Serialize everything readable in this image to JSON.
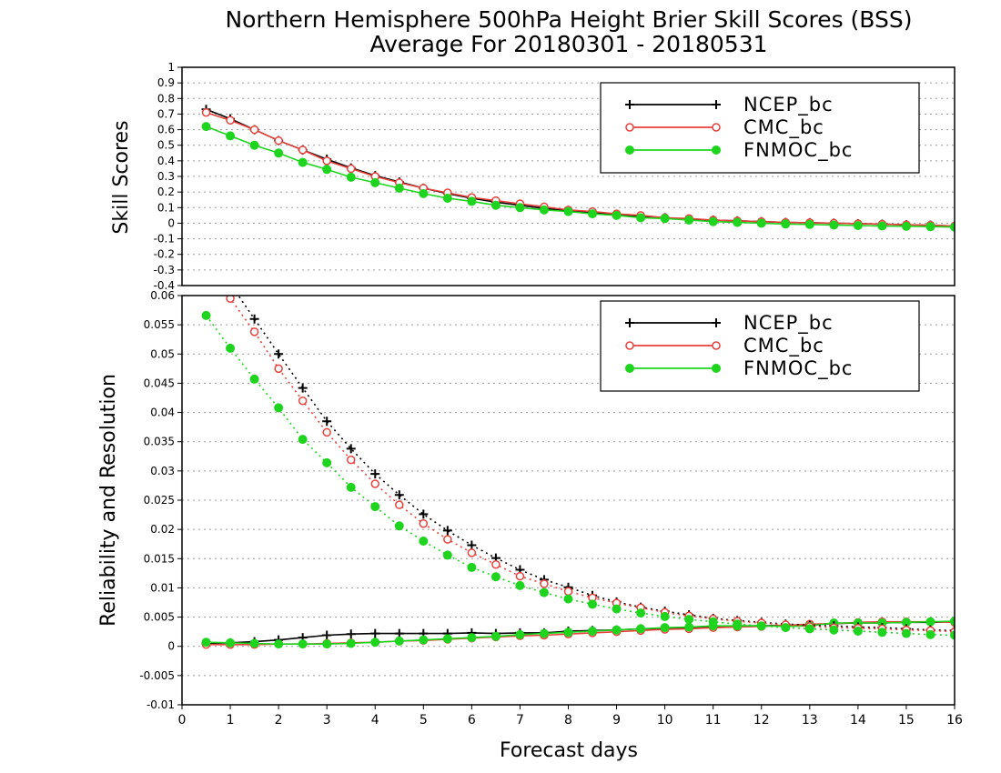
{
  "title": {
    "line1": "Northern Hemisphere 500hPa Height Brier Skill Scores (BSS)",
    "line2": "Average For 20180301 - 20180531"
  },
  "colors": {
    "ncep": "#000000",
    "cmc": "#e8413c",
    "fnmoc": "#1ed41e",
    "grid": "#9a9a9a"
  },
  "chart_data": [
    {
      "type": "line",
      "ylabel": "Skill Scores",
      "xlabel": "",
      "xlim": [
        0,
        16
      ],
      "ylim": [
        -0.4,
        1
      ],
      "yticks": [
        "-0.4",
        "-0.3",
        "-0.2",
        "-0.1",
        "0",
        "0.1",
        "0.2",
        "0.3",
        "0.4",
        "0.5",
        "0.6",
        "0.7",
        "0.8",
        "0.9",
        "1"
      ],
      "grid": true,
      "legend_position": "top-right",
      "x": [
        0.5,
        1,
        1.5,
        2,
        2.5,
        3,
        3.5,
        4,
        4.5,
        5,
        5.5,
        6,
        6.5,
        7,
        7.5,
        8,
        8.5,
        9,
        9.5,
        10,
        10.5,
        11,
        11.5,
        12,
        12.5,
        13,
        13.5,
        14,
        14.5,
        15,
        15.5,
        16
      ],
      "series": [
        {
          "name": "NCEP_bc",
          "marker": "plus",
          "style": "solid",
          "values": [
            0.73,
            0.67,
            0.6,
            0.53,
            0.47,
            0.41,
            0.355,
            0.305,
            0.265,
            0.225,
            0.19,
            0.16,
            0.135,
            0.115,
            0.095,
            0.08,
            0.07,
            0.055,
            0.045,
            0.035,
            0.025,
            0.02,
            0.015,
            0.01,
            0.005,
            0.003,
            0,
            -0.003,
            -0.006,
            -0.01,
            -0.013,
            -0.018
          ]
        },
        {
          "name": "CMC_bc",
          "marker": "circle-open",
          "style": "solid",
          "values": [
            0.71,
            0.66,
            0.6,
            0.53,
            0.47,
            0.4,
            0.35,
            0.3,
            0.26,
            0.225,
            0.195,
            0.165,
            0.145,
            0.125,
            0.105,
            0.085,
            0.075,
            0.06,
            0.05,
            0.035,
            0.03,
            0.02,
            0.015,
            0.01,
            0.005,
            0.003,
            0,
            -0.003,
            -0.006,
            -0.01,
            -0.013,
            -0.018
          ]
        },
        {
          "name": "FNMOC_bc",
          "marker": "circle-filled",
          "style": "solid",
          "values": [
            0.62,
            0.56,
            0.5,
            0.45,
            0.39,
            0.345,
            0.295,
            0.26,
            0.225,
            0.19,
            0.16,
            0.14,
            0.115,
            0.1,
            0.085,
            0.075,
            0.06,
            0.05,
            0.035,
            0.03,
            0.02,
            0.01,
            0.005,
            0,
            -0.005,
            -0.008,
            -0.012,
            -0.015,
            -0.018,
            -0.02,
            -0.022,
            -0.025
          ]
        }
      ]
    },
    {
      "type": "line",
      "ylabel": "Reliability and Resolution",
      "xlabel": "Forecast days",
      "xlim": [
        0,
        16
      ],
      "ylim": [
        -0.01,
        0.06
      ],
      "yticks": [
        "-0.01",
        "-0.005",
        "0",
        "0.005",
        "0.01",
        "0.015",
        "0.02",
        "0.025",
        "0.03",
        "0.035",
        "0.04",
        "0.045",
        "0.05",
        "0.055",
        "0.06"
      ],
      "xticks": [
        "0",
        "1",
        "2",
        "3",
        "4",
        "5",
        "6",
        "7",
        "8",
        "9",
        "10",
        "11",
        "12",
        "13",
        "14",
        "15",
        "16"
      ],
      "grid": true,
      "legend_position": "top-right",
      "x": [
        0.5,
        1,
        1.5,
        2,
        2.5,
        3,
        3.5,
        4,
        4.5,
        5,
        5.5,
        6,
        6.5,
        7,
        7.5,
        8,
        8.5,
        9,
        9.5,
        10,
        10.5,
        11,
        11.5,
        12,
        12.5,
        13,
        13.5,
        14,
        14.5,
        15,
        15.5,
        16
      ],
      "series": [
        {
          "name": "NCEP_bc",
          "marker": "plus",
          "style": "solid",
          "group": "reliability",
          "values": [
            0.0005,
            0.0006,
            0.0008,
            0.0011,
            0.0015,
            0.0019,
            0.0021,
            0.0022,
            0.0022,
            0.0022,
            0.0022,
            0.0023,
            0.0022,
            0.0023,
            0.0023,
            0.0026,
            0.0027,
            0.0028,
            0.003,
            0.003,
            0.0031,
            0.0033,
            0.0035,
            0.0035,
            0.0036,
            0.0037,
            0.0039,
            0.004,
            0.004,
            0.0041,
            0.0041,
            0.0042
          ]
        },
        {
          "name": "CMC_bc",
          "marker": "circle-open",
          "style": "solid",
          "group": "reliability",
          "values": [
            0.0003,
            0.0003,
            0.0003,
            0.0004,
            0.0004,
            0.0005,
            0.0006,
            0.0007,
            0.0009,
            0.001,
            0.0012,
            0.0014,
            0.0016,
            0.0018,
            0.0019,
            0.0021,
            0.0023,
            0.0025,
            0.0027,
            0.0029,
            0.003,
            0.0032,
            0.0033,
            0.0034,
            0.0036,
            0.0038,
            0.0039,
            0.0041,
            0.0042,
            0.0042,
            0.0042,
            0.0041
          ]
        },
        {
          "name": "FNMOC_bc",
          "marker": "circle-filled",
          "style": "solid",
          "group": "reliability",
          "values": [
            0.0007,
            0.0006,
            0.0005,
            0.0004,
            0.0004,
            0.0004,
            0.0005,
            0.0007,
            0.0009,
            0.0011,
            0.0013,
            0.0015,
            0.0017,
            0.002,
            0.0022,
            0.0024,
            0.0026,
            0.0028,
            0.003,
            0.0032,
            0.0033,
            0.0035,
            0.0035,
            0.0035,
            0.0034,
            0.0035,
            0.004,
            0.004,
            0.004,
            0.0041,
            0.0042,
            0.0043
          ]
        },
        {
          "name": "NCEP_bc",
          "marker": "plus",
          "style": "dotted",
          "group": "resolution",
          "values": [
            0.066,
            0.062,
            0.056,
            0.05,
            0.0442,
            0.0385,
            0.0338,
            0.0295,
            0.0259,
            0.0226,
            0.0198,
            0.0173,
            0.0151,
            0.0131,
            0.0114,
            0.0101,
            0.0087,
            0.0076,
            0.0067,
            0.006,
            0.0054,
            0.0048,
            0.0044,
            0.0041,
            0.0038,
            0.0036,
            0.0035,
            0.0033,
            0.0032,
            0.003,
            0.0028,
            0.0027
          ]
        },
        {
          "name": "CMC_bc",
          "marker": "circle-open",
          "style": "dotted",
          "group": "resolution",
          "values": [
            0.065,
            0.0595,
            0.0538,
            0.0475,
            0.042,
            0.0366,
            0.0319,
            0.0278,
            0.0242,
            0.021,
            0.0183,
            0.016,
            0.014,
            0.012,
            0.0107,
            0.0094,
            0.0083,
            0.0074,
            0.0066,
            0.0058,
            0.0052,
            0.0047,
            0.0043,
            0.004,
            0.0037,
            0.0034,
            0.0032,
            0.0031,
            0.003,
            0.0028,
            0.0027,
            0.0025
          ]
        },
        {
          "name": "FNMOC_bc",
          "marker": "circle-filled",
          "style": "dotted",
          "group": "resolution",
          "values": [
            0.0566,
            0.051,
            0.0457,
            0.0408,
            0.0354,
            0.0314,
            0.0272,
            0.0239,
            0.0206,
            0.018,
            0.0156,
            0.0135,
            0.0119,
            0.0104,
            0.0092,
            0.0081,
            0.0072,
            0.0064,
            0.0057,
            0.0051,
            0.0046,
            0.0042,
            0.0038,
            0.0035,
            0.0032,
            0.003,
            0.0028,
            0.0026,
            0.0024,
            0.0022,
            0.002,
            0.0019
          ]
        }
      ]
    }
  ]
}
